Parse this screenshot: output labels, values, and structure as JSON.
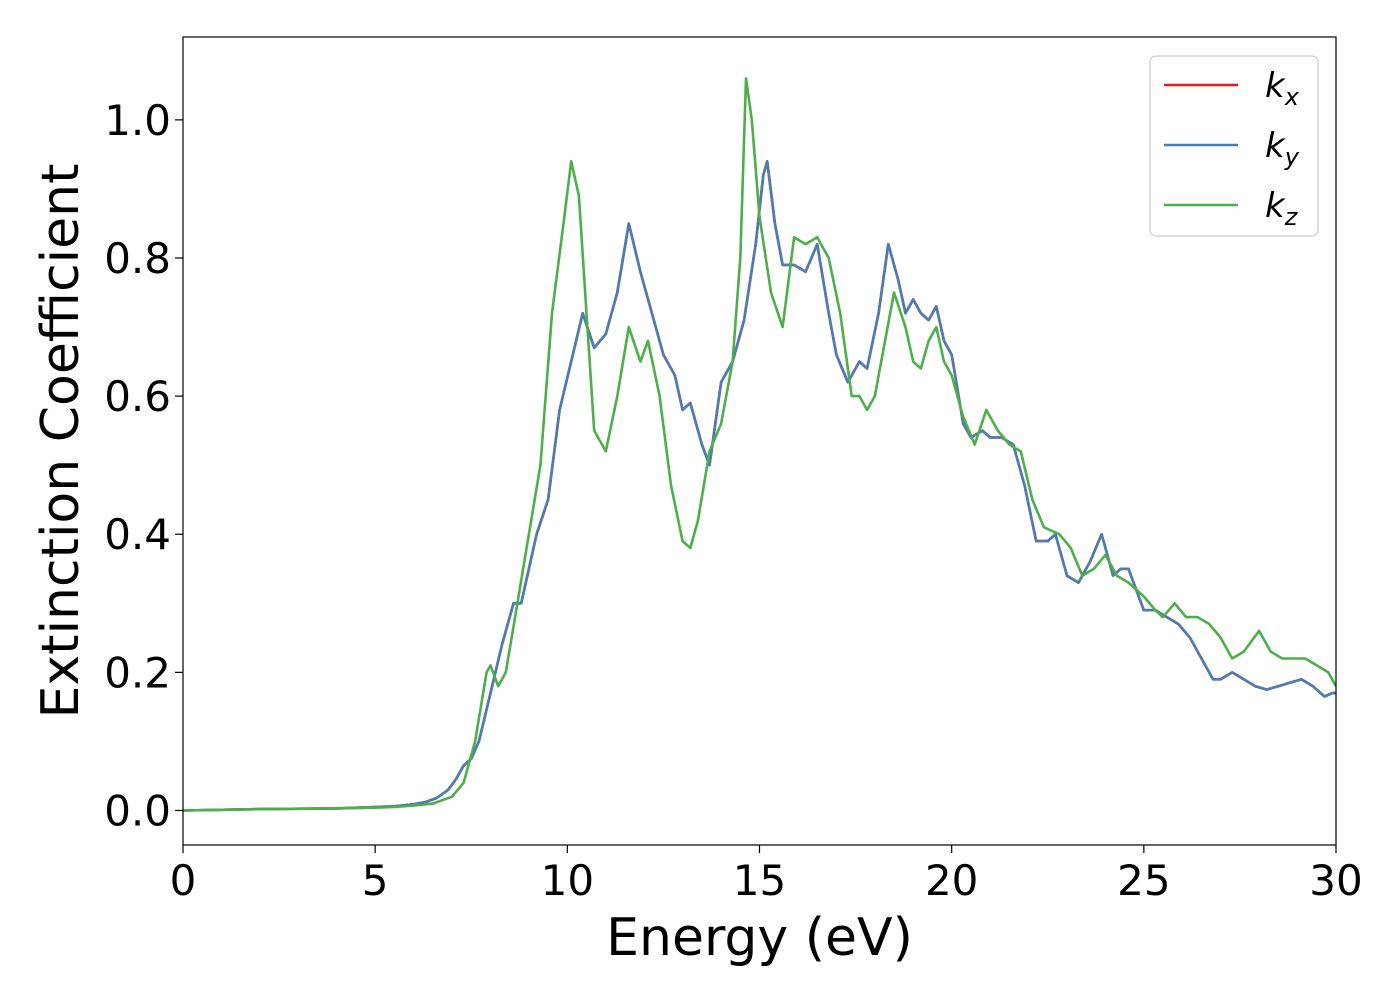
{
  "chart_data": {
    "type": "line",
    "title": "",
    "xlabel": "Energy (eV)",
    "ylabel": "Extinction Coefficient",
    "xlim": [
      0,
      30
    ],
    "ylim": [
      -0.05,
      1.12
    ],
    "xticks": [
      0,
      5,
      10,
      15,
      20,
      25,
      30
    ],
    "xtick_labels": [
      "0",
      "5",
      "10",
      "15",
      "20",
      "25",
      "30"
    ],
    "yticks": [
      0.0,
      0.2,
      0.4,
      0.6,
      0.8,
      1.0
    ],
    "ytick_labels": [
      "0.0",
      "0.2",
      "0.4",
      "0.6",
      "0.8",
      "1.0"
    ],
    "grid": false,
    "legend_position": "top-right",
    "series": [
      {
        "name": "k_x",
        "legend_base": "k",
        "legend_sub": "x",
        "color": "#e41a1c",
        "x": [
          0,
          2,
          4,
          5,
          5.5,
          6,
          6.3,
          6.6,
          6.9,
          7.1,
          7.3,
          7.5,
          7.7,
          8.0,
          8.3,
          8.6,
          8.8,
          9.0,
          9.2,
          9.5,
          9.8,
          10.1,
          10.4,
          10.7,
          11.0,
          11.3,
          11.6,
          11.9,
          12.2,
          12.5,
          12.8,
          13.0,
          13.2,
          13.5,
          13.7,
          14.0,
          14.3,
          14.6,
          14.9,
          15.1,
          15.2,
          15.4,
          15.6,
          15.9,
          16.2,
          16.5,
          16.8,
          17.0,
          17.3,
          17.6,
          17.8,
          18.1,
          18.35,
          18.6,
          18.8,
          19.0,
          19.2,
          19.4,
          19.6,
          19.8,
          20.0,
          20.3,
          20.5,
          20.8,
          21.0,
          21.3,
          21.6,
          21.9,
          22.2,
          22.5,
          22.7,
          23.0,
          23.3,
          23.6,
          23.9,
          24.2,
          24.4,
          24.6,
          24.8,
          25.0,
          25.3,
          25.6,
          25.9,
          26.2,
          26.5,
          26.8,
          27.0,
          27.3,
          27.6,
          27.9,
          28.2,
          28.5,
          28.8,
          29.1,
          29.4,
          29.7,
          29.9,
          30.0
        ],
        "y": [
          0.0,
          0.002,
          0.003,
          0.005,
          0.006,
          0.009,
          0.012,
          0.018,
          0.03,
          0.045,
          0.065,
          0.075,
          0.1,
          0.17,
          0.24,
          0.3,
          0.3,
          0.35,
          0.4,
          0.45,
          0.58,
          0.65,
          0.72,
          0.67,
          0.69,
          0.75,
          0.85,
          0.78,
          0.72,
          0.66,
          0.63,
          0.58,
          0.59,
          0.53,
          0.5,
          0.62,
          0.65,
          0.71,
          0.82,
          0.92,
          0.94,
          0.85,
          0.79,
          0.79,
          0.78,
          0.82,
          0.72,
          0.66,
          0.62,
          0.65,
          0.64,
          0.72,
          0.82,
          0.77,
          0.72,
          0.74,
          0.72,
          0.71,
          0.73,
          0.68,
          0.66,
          0.56,
          0.54,
          0.55,
          0.54,
          0.54,
          0.53,
          0.47,
          0.39,
          0.39,
          0.4,
          0.34,
          0.33,
          0.36,
          0.4,
          0.34,
          0.35,
          0.35,
          0.32,
          0.29,
          0.29,
          0.28,
          0.27,
          0.25,
          0.22,
          0.19,
          0.19,
          0.2,
          0.19,
          0.18,
          0.175,
          0.18,
          0.185,
          0.19,
          0.18,
          0.165,
          0.17,
          0.17
        ]
      },
      {
        "name": "k_y",
        "legend_base": "k",
        "legend_sub": "y",
        "color": "#4a7db3",
        "x": [
          0,
          2,
          4,
          5,
          5.5,
          6,
          6.3,
          6.6,
          6.9,
          7.1,
          7.3,
          7.5,
          7.7,
          8.0,
          8.3,
          8.6,
          8.8,
          9.0,
          9.2,
          9.5,
          9.8,
          10.1,
          10.4,
          10.7,
          11.0,
          11.3,
          11.6,
          11.9,
          12.2,
          12.5,
          12.8,
          13.0,
          13.2,
          13.5,
          13.7,
          14.0,
          14.3,
          14.6,
          14.9,
          15.1,
          15.2,
          15.4,
          15.6,
          15.9,
          16.2,
          16.5,
          16.8,
          17.0,
          17.3,
          17.6,
          17.8,
          18.1,
          18.35,
          18.6,
          18.8,
          19.0,
          19.2,
          19.4,
          19.6,
          19.8,
          20.0,
          20.3,
          20.5,
          20.8,
          21.0,
          21.3,
          21.6,
          21.9,
          22.2,
          22.5,
          22.7,
          23.0,
          23.3,
          23.6,
          23.9,
          24.2,
          24.4,
          24.6,
          24.8,
          25.0,
          25.3,
          25.6,
          25.9,
          26.2,
          26.5,
          26.8,
          27.0,
          27.3,
          27.6,
          27.9,
          28.2,
          28.5,
          28.8,
          29.1,
          29.4,
          29.7,
          29.9,
          30.0
        ],
        "y": [
          0.0,
          0.002,
          0.003,
          0.005,
          0.006,
          0.009,
          0.012,
          0.018,
          0.03,
          0.045,
          0.065,
          0.075,
          0.1,
          0.17,
          0.24,
          0.3,
          0.3,
          0.35,
          0.4,
          0.45,
          0.58,
          0.65,
          0.72,
          0.67,
          0.69,
          0.75,
          0.85,
          0.78,
          0.72,
          0.66,
          0.63,
          0.58,
          0.59,
          0.53,
          0.5,
          0.62,
          0.65,
          0.71,
          0.82,
          0.92,
          0.94,
          0.85,
          0.79,
          0.79,
          0.78,
          0.82,
          0.72,
          0.66,
          0.62,
          0.65,
          0.64,
          0.72,
          0.82,
          0.77,
          0.72,
          0.74,
          0.72,
          0.71,
          0.73,
          0.68,
          0.66,
          0.56,
          0.54,
          0.55,
          0.54,
          0.54,
          0.53,
          0.47,
          0.39,
          0.39,
          0.4,
          0.34,
          0.33,
          0.36,
          0.4,
          0.34,
          0.35,
          0.35,
          0.32,
          0.29,
          0.29,
          0.28,
          0.27,
          0.25,
          0.22,
          0.19,
          0.19,
          0.2,
          0.19,
          0.18,
          0.175,
          0.18,
          0.185,
          0.19,
          0.18,
          0.165,
          0.17,
          0.17
        ]
      },
      {
        "name": "k_z",
        "legend_base": "k",
        "legend_sub": "z",
        "color": "#4daf4a",
        "x": [
          0,
          2,
          4,
          5,
          5.5,
          6,
          6.5,
          7.0,
          7.3,
          7.6,
          7.9,
          8.0,
          8.2,
          8.4,
          8.7,
          9.0,
          9.3,
          9.6,
          9.9,
          10.1,
          10.3,
          10.5,
          10.7,
          11.0,
          11.3,
          11.6,
          11.9,
          12.1,
          12.4,
          12.7,
          13.0,
          13.2,
          13.4,
          13.7,
          14.0,
          14.3,
          14.5,
          14.65,
          14.8,
          15.0,
          15.3,
          15.6,
          15.9,
          16.2,
          16.5,
          16.8,
          17.1,
          17.4,
          17.6,
          17.8,
          18.0,
          18.2,
          18.5,
          18.8,
          19.0,
          19.2,
          19.4,
          19.6,
          19.8,
          20.0,
          20.3,
          20.6,
          20.9,
          21.2,
          21.5,
          21.8,
          22.1,
          22.4,
          22.8,
          23.1,
          23.4,
          23.7,
          24.0,
          24.3,
          24.6,
          25.0,
          25.3,
          25.5,
          25.8,
          26.1,
          26.4,
          26.7,
          27.0,
          27.3,
          27.6,
          28.0,
          28.3,
          28.6,
          28.9,
          29.2,
          29.5,
          29.8,
          30.0
        ],
        "y": [
          0.0,
          0.002,
          0.003,
          0.004,
          0.005,
          0.007,
          0.01,
          0.02,
          0.04,
          0.1,
          0.2,
          0.21,
          0.18,
          0.2,
          0.3,
          0.4,
          0.5,
          0.72,
          0.85,
          0.94,
          0.89,
          0.72,
          0.55,
          0.52,
          0.6,
          0.7,
          0.65,
          0.68,
          0.6,
          0.47,
          0.39,
          0.38,
          0.42,
          0.52,
          0.56,
          0.65,
          0.8,
          1.06,
          1.0,
          0.86,
          0.75,
          0.7,
          0.83,
          0.82,
          0.83,
          0.8,
          0.72,
          0.6,
          0.6,
          0.58,
          0.6,
          0.66,
          0.75,
          0.7,
          0.65,
          0.64,
          0.68,
          0.7,
          0.65,
          0.63,
          0.57,
          0.53,
          0.58,
          0.55,
          0.53,
          0.52,
          0.45,
          0.41,
          0.4,
          0.38,
          0.34,
          0.35,
          0.37,
          0.34,
          0.33,
          0.31,
          0.29,
          0.28,
          0.3,
          0.28,
          0.28,
          0.27,
          0.25,
          0.22,
          0.23,
          0.26,
          0.23,
          0.22,
          0.22,
          0.22,
          0.21,
          0.2,
          0.18
        ]
      }
    ]
  }
}
